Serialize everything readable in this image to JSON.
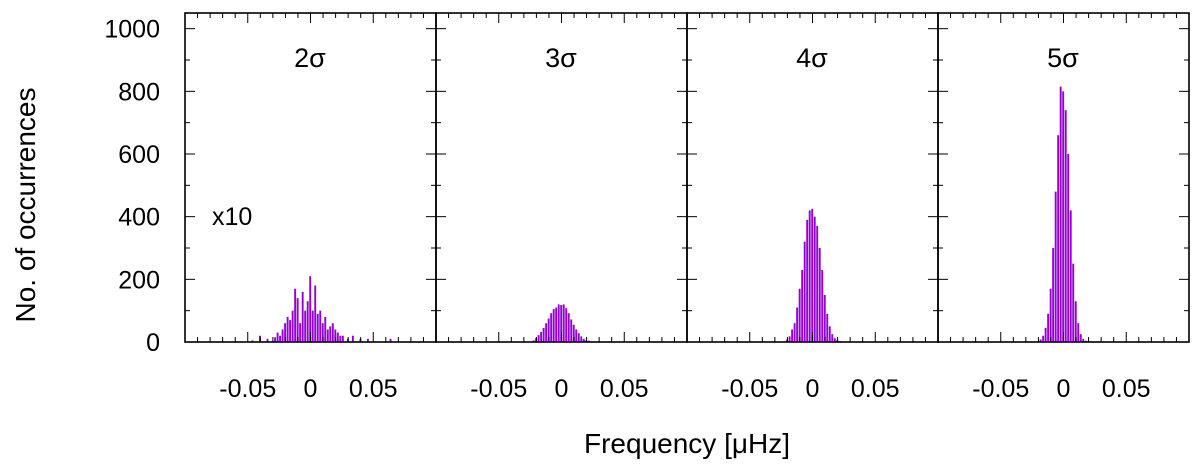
{
  "chart_data": {
    "type": "bar",
    "xlabel": "Frequency [μHz]",
    "ylabel": "No. of occurrences",
    "ylim": [
      0,
      1050
    ],
    "xlim": [
      -0.1,
      0.1
    ],
    "y_ticks": [
      0,
      200,
      400,
      600,
      800,
      1000
    ],
    "y_tick_labels": [
      "0",
      "200",
      "400",
      "600",
      "800",
      "1000"
    ],
    "x_ticks": [
      -0.05,
      0,
      0.05
    ],
    "x_tick_labels": [
      "-0.05",
      "0",
      "0.05"
    ],
    "bin_width": 0.002,
    "bar_color": "#9400d3",
    "panels": [
      {
        "label": "2σ",
        "annotation": "x10",
        "bins": [
          {
            "x": -0.046,
            "v": 5
          },
          {
            "x": -0.04,
            "v": 20
          },
          {
            "x": -0.034,
            "v": 10
          },
          {
            "x": -0.028,
            "v": 15
          },
          {
            "x": -0.026,
            "v": 30
          },
          {
            "x": -0.024,
            "v": 20
          },
          {
            "x": -0.022,
            "v": 40
          },
          {
            "x": -0.02,
            "v": 60
          },
          {
            "x": -0.018,
            "v": 80
          },
          {
            "x": -0.016,
            "v": 70
          },
          {
            "x": -0.014,
            "v": 100
          },
          {
            "x": -0.012,
            "v": 170
          },
          {
            "x": -0.01,
            "v": 140
          },
          {
            "x": -0.008,
            "v": 60
          },
          {
            "x": -0.006,
            "v": 160
          },
          {
            "x": -0.004,
            "v": 100
          },
          {
            "x": -0.002,
            "v": 130
          },
          {
            "x": 0.0,
            "v": 210
          },
          {
            "x": 0.002,
            "v": 100
          },
          {
            "x": 0.004,
            "v": 180
          },
          {
            "x": 0.006,
            "v": 90
          },
          {
            "x": 0.008,
            "v": 100
          },
          {
            "x": 0.01,
            "v": 60
          },
          {
            "x": 0.012,
            "v": 80
          },
          {
            "x": 0.014,
            "v": 40
          },
          {
            "x": 0.016,
            "v": 50
          },
          {
            "x": 0.018,
            "v": 60
          },
          {
            "x": 0.02,
            "v": 40
          },
          {
            "x": 0.022,
            "v": 30
          },
          {
            "x": 0.024,
            "v": 20
          },
          {
            "x": 0.026,
            "v": 20
          },
          {
            "x": 0.03,
            "v": 10
          },
          {
            "x": 0.034,
            "v": 20
          },
          {
            "x": 0.04,
            "v": 10
          },
          {
            "x": 0.046,
            "v": 10
          },
          {
            "x": 0.064,
            "v": 10
          }
        ]
      },
      {
        "label": "3σ",
        "annotation": "",
        "bins": [
          {
            "x": -0.022,
            "v": 5
          },
          {
            "x": -0.02,
            "v": 12
          },
          {
            "x": -0.018,
            "v": 22
          },
          {
            "x": -0.016,
            "v": 32
          },
          {
            "x": -0.014,
            "v": 45
          },
          {
            "x": -0.012,
            "v": 60
          },
          {
            "x": -0.01,
            "v": 75
          },
          {
            "x": -0.008,
            "v": 92
          },
          {
            "x": -0.006,
            "v": 105
          },
          {
            "x": -0.004,
            "v": 110
          },
          {
            "x": -0.002,
            "v": 120
          },
          {
            "x": 0.0,
            "v": 118
          },
          {
            "x": 0.002,
            "v": 120
          },
          {
            "x": 0.004,
            "v": 108
          },
          {
            "x": 0.006,
            "v": 92
          },
          {
            "x": 0.008,
            "v": 72
          },
          {
            "x": 0.01,
            "v": 55
          },
          {
            "x": 0.012,
            "v": 40
          },
          {
            "x": 0.014,
            "v": 28
          },
          {
            "x": 0.016,
            "v": 18
          },
          {
            "x": 0.018,
            "v": 10
          },
          {
            "x": 0.02,
            "v": 6
          },
          {
            "x": 0.022,
            "v": 4
          },
          {
            "x": 0.024,
            "v": 2
          }
        ]
      },
      {
        "label": "4σ",
        "annotation": "",
        "bins": [
          {
            "x": -0.02,
            "v": 8
          },
          {
            "x": -0.018,
            "v": 18
          },
          {
            "x": -0.016,
            "v": 40
          },
          {
            "x": -0.014,
            "v": 60
          },
          {
            "x": -0.012,
            "v": 110
          },
          {
            "x": -0.01,
            "v": 170
          },
          {
            "x": -0.008,
            "v": 230
          },
          {
            "x": -0.006,
            "v": 320
          },
          {
            "x": -0.004,
            "v": 390
          },
          {
            "x": -0.002,
            "v": 420
          },
          {
            "x": 0.0,
            "v": 425
          },
          {
            "x": 0.002,
            "v": 400
          },
          {
            "x": 0.004,
            "v": 370
          },
          {
            "x": 0.006,
            "v": 300
          },
          {
            "x": 0.008,
            "v": 230
          },
          {
            "x": 0.01,
            "v": 150
          },
          {
            "x": 0.012,
            "v": 90
          },
          {
            "x": 0.014,
            "v": 50
          },
          {
            "x": 0.016,
            "v": 25
          },
          {
            "x": 0.018,
            "v": 12
          },
          {
            "x": 0.02,
            "v": 6
          },
          {
            "x": 0.022,
            "v": 3
          }
        ]
      },
      {
        "label": "5σ",
        "annotation": "",
        "bins": [
          {
            "x": -0.018,
            "v": 8
          },
          {
            "x": -0.016,
            "v": 20
          },
          {
            "x": -0.014,
            "v": 45
          },
          {
            "x": -0.012,
            "v": 90
          },
          {
            "x": -0.01,
            "v": 170
          },
          {
            "x": -0.008,
            "v": 300
          },
          {
            "x": -0.006,
            "v": 480
          },
          {
            "x": -0.004,
            "v": 660
          },
          {
            "x": -0.002,
            "v": 815
          },
          {
            "x": 0.0,
            "v": 800
          },
          {
            "x": 0.002,
            "v": 740
          },
          {
            "x": 0.004,
            "v": 600
          },
          {
            "x": 0.006,
            "v": 420
          },
          {
            "x": 0.008,
            "v": 250
          },
          {
            "x": 0.01,
            "v": 130
          },
          {
            "x": 0.012,
            "v": 60
          },
          {
            "x": 0.014,
            "v": 25
          },
          {
            "x": 0.016,
            "v": 10
          },
          {
            "x": 0.018,
            "v": 4
          }
        ]
      }
    ]
  }
}
